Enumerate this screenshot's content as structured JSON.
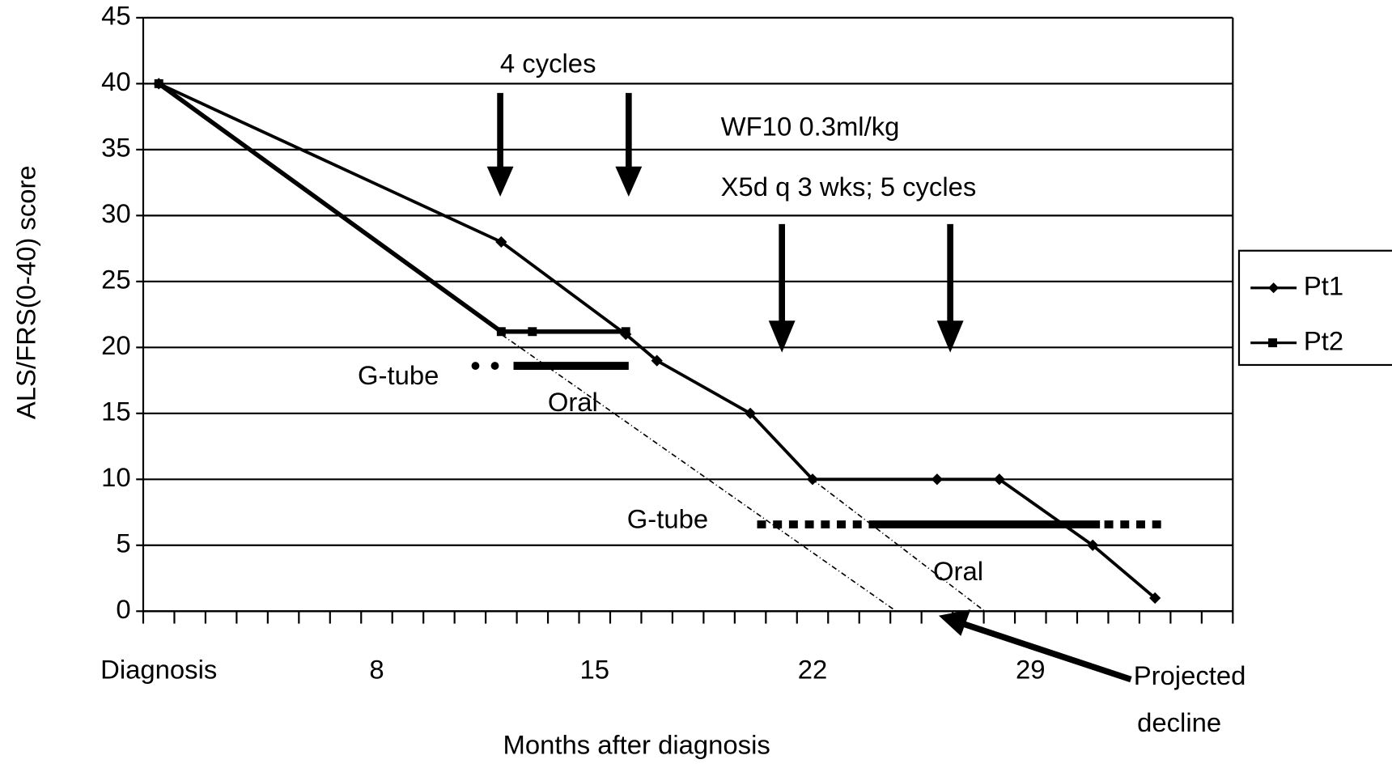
{
  "chart_data": {
    "type": "line",
    "xlabel": "Months after diagnosis",
    "ylabel": "ALS/FRS(0-40) score",
    "xlim": [
      0.5,
      35.5
    ],
    "xticks": [
      {
        "value": 1,
        "label": "Diagnosis"
      },
      8,
      15,
      22,
      29
    ],
    "ylim": [
      0,
      45
    ],
    "yticks": [
      0,
      5,
      10,
      15,
      20,
      25,
      30,
      35,
      40,
      45
    ],
    "grid": true,
    "legend": "right",
    "series": [
      {
        "name": "Pt1",
        "color": "#000000",
        "marker": "diamond",
        "x": [
          1,
          12,
          16,
          17,
          20,
          22,
          26,
          28,
          31,
          33
        ],
        "values": [
          40,
          28,
          21,
          19,
          15,
          10,
          10,
          10,
          5,
          1
        ]
      },
      {
        "name": "Pt2",
        "color": "#000000",
        "marker": "square",
        "x": [
          1,
          12,
          13,
          16
        ],
        "values": [
          40,
          21.2,
          21.2,
          21.2
        ]
      }
    ],
    "annotations": [
      "4 cycles",
      "WF10 0.3ml/kg",
      "X5d q 3 wks; 5 cycles",
      "G-tube",
      "Oral",
      "G-tube",
      "Oral",
      "Projected",
      "decline"
    ]
  }
}
